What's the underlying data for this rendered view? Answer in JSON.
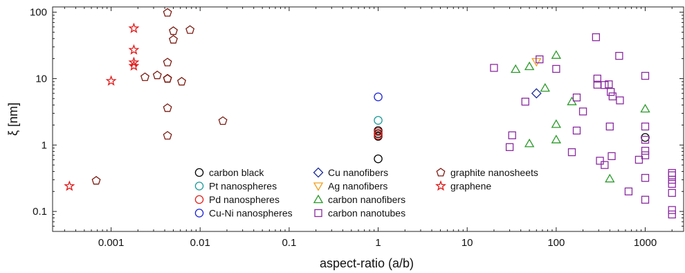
{
  "chart_data": {
    "type": "scatter",
    "xlabel": "aspect-ratio (a/b)",
    "ylabel": "ξ [nm]",
    "xscale": "log",
    "yscale": "log",
    "xlim": [
      0.00022,
      2700
    ],
    "ylim": [
      0.05,
      120
    ],
    "x_ticks": [
      {
        "value": 0.001,
        "label": "0.001"
      },
      {
        "value": 0.01,
        "label": "0.01"
      },
      {
        "value": 0.1,
        "label": "0.1"
      },
      {
        "value": 1,
        "label": "1"
      },
      {
        "value": 10,
        "label": "10"
      },
      {
        "value": 100,
        "label": "100"
      },
      {
        "value": 1000,
        "label": "1000"
      }
    ],
    "y_ticks": [
      {
        "value": 0.1,
        "label": "0.1"
      },
      {
        "value": 1,
        "label": "1"
      },
      {
        "value": 10,
        "label": "10"
      },
      {
        "value": 100,
        "label": "100"
      }
    ],
    "grid": false,
    "legend_position": "bottom-center",
    "series": [
      {
        "name": "carbon black",
        "marker": "circle",
        "color": "#000000",
        "points": [
          [
            1,
            0.62
          ],
          [
            1,
            1.35
          ],
          [
            1,
            1.48
          ],
          [
            1,
            1.65
          ],
          [
            1000,
            1.3
          ]
        ]
      },
      {
        "name": "Pt nanospheres",
        "marker": "circle",
        "color": "#1a9a9a",
        "points": [
          [
            1,
            2.35
          ]
        ]
      },
      {
        "name": "Pd nanospheres",
        "marker": "circle",
        "color": "#e0201a",
        "points": [
          [
            1,
            1.4
          ],
          [
            1,
            1.58
          ]
        ]
      },
      {
        "name": "Cu-Ni nanospheres",
        "marker": "circle",
        "color": "#1a22d8",
        "points": [
          [
            1,
            5.3
          ]
        ]
      },
      {
        "name": "Cu nanofibers",
        "marker": "diamond",
        "color": "#1a2a9a",
        "points": [
          [
            60,
            6.0
          ]
        ]
      },
      {
        "name": "Ag nanofibers",
        "marker": "triangle-down",
        "color": "#f0a020",
        "points": [
          [
            60,
            18
          ]
        ]
      },
      {
        "name": "carbon nanofibers",
        "marker": "triangle-up",
        "color": "#2a9a2a",
        "points": [
          [
            35,
            13.8
          ],
          [
            50,
            15.2
          ],
          [
            75,
            7.2
          ],
          [
            100,
            22.5
          ],
          [
            100,
            2.05
          ],
          [
            100,
            1.2
          ],
          [
            50,
            1.05
          ],
          [
            150,
            4.5
          ],
          [
            1000,
            3.5
          ],
          [
            400,
            0.31
          ]
        ]
      },
      {
        "name": "carbon nanotubes",
        "marker": "square",
        "color": "#8a2aa0",
        "points": [
          [
            20,
            14.5
          ],
          [
            32,
            1.4
          ],
          [
            30,
            0.93
          ],
          [
            45,
            4.5
          ],
          [
            65,
            19.5
          ],
          [
            100,
            14
          ],
          [
            150,
            0.78
          ],
          [
            170,
            5.2
          ],
          [
            170,
            1.65
          ],
          [
            200,
            3.2
          ],
          [
            280,
            42
          ],
          [
            290,
            10
          ],
          [
            290,
            8.1
          ],
          [
            310,
            0.58
          ],
          [
            350,
            0.5
          ],
          [
            350,
            8.0
          ],
          [
            390,
            8.2
          ],
          [
            400,
            1.9
          ],
          [
            410,
            6.3
          ],
          [
            430,
            5.4
          ],
          [
            420,
            0.68
          ],
          [
            510,
            22
          ],
          [
            520,
            4.7
          ],
          [
            650,
            0.2
          ],
          [
            850,
            0.6
          ],
          [
            1000,
            11
          ],
          [
            1000,
            1.9
          ],
          [
            1000,
            1.2
          ],
          [
            1000,
            0.82
          ],
          [
            1000,
            0.7
          ],
          [
            1000,
            0.32
          ],
          [
            1000,
            0.15
          ],
          [
            2000,
            0.38
          ],
          [
            2000,
            0.35
          ],
          [
            2000,
            0.3
          ],
          [
            2000,
            0.26
          ],
          [
            2000,
            0.19
          ],
          [
            2000,
            0.105
          ],
          [
            2000,
            0.09
          ]
        ]
      },
      {
        "name": "graphite nanosheets",
        "marker": "pentagon",
        "color": "#7a1a10",
        "points": [
          [
            0.00068,
            0.29
          ],
          [
            0.0024,
            10.5
          ],
          [
            0.0033,
            11.2
          ],
          [
            0.0043,
            98
          ],
          [
            0.0043,
            17.5
          ],
          [
            0.0043,
            10
          ],
          [
            0.0043,
            9.9
          ],
          [
            0.0043,
            3.6
          ],
          [
            0.0043,
            1.38
          ],
          [
            0.005,
            52
          ],
          [
            0.005,
            38.5
          ],
          [
            0.0062,
            9
          ],
          [
            0.0077,
            54
          ],
          [
            0.018,
            2.3
          ]
        ]
      },
      {
        "name": "graphene",
        "marker": "star",
        "color": "#e01818",
        "points": [
          [
            0.00034,
            0.24
          ],
          [
            0.001,
            9.2
          ],
          [
            0.0018,
            57
          ],
          [
            0.0018,
            27
          ],
          [
            0.0018,
            17.5
          ],
          [
            0.0018,
            15.5
          ]
        ]
      }
    ]
  }
}
